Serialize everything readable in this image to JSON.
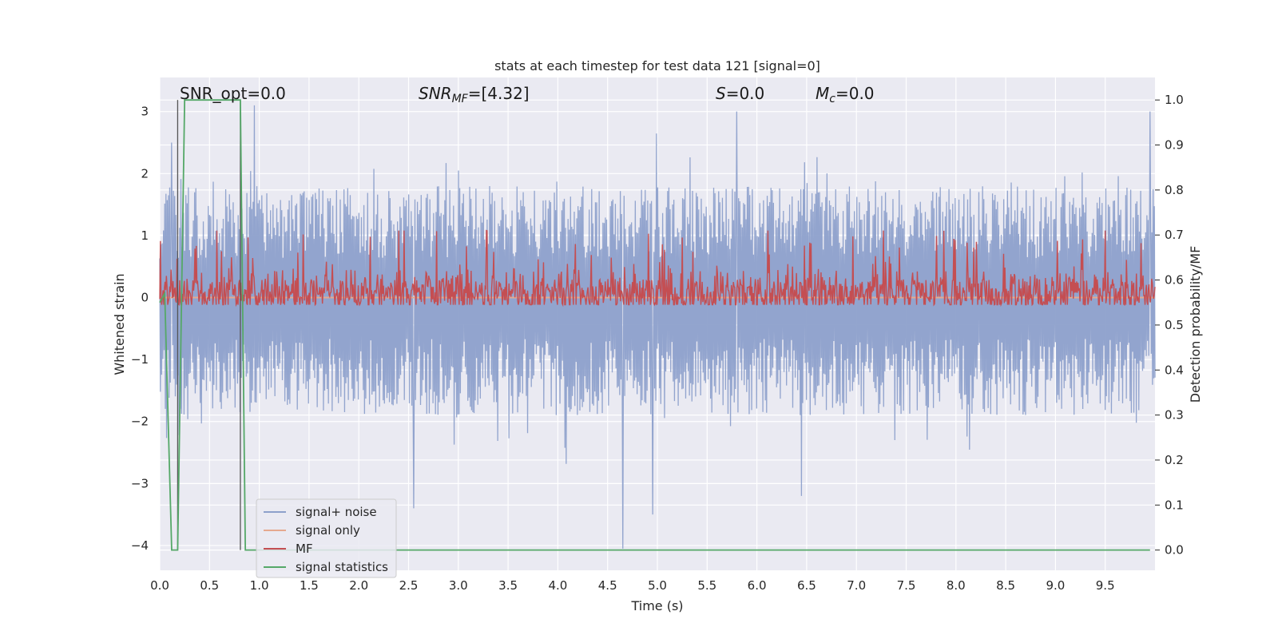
{
  "chart_data": {
    "type": "line",
    "title": "stats at each timestep for test data 121 [signal=0]",
    "xlabel": "Time (s)",
    "ylabel": "Whitened strain",
    "y2label": "Detection probability/MF",
    "xlim": [
      0.0,
      10.0
    ],
    "ylim": [
      -4.4,
      3.55
    ],
    "y2lim": [
      -0.045,
      1.05
    ],
    "x_ticks": [
      "0.0",
      "0.5",
      "1.0",
      "1.5",
      "2.0",
      "2.5",
      "3.0",
      "3.5",
      "4.0",
      "4.5",
      "5.0",
      "5.5",
      "6.0",
      "6.5",
      "7.0",
      "7.5",
      "8.0",
      "8.5",
      "9.0",
      "9.5"
    ],
    "y_ticks": [
      "3",
      "2",
      "1",
      "0",
      "−1",
      "−2",
      "−3",
      "−4"
    ],
    "y2_ticks": [
      "1.0",
      "0.9",
      "0.8",
      "0.7",
      "0.6",
      "0.5",
      "0.4",
      "0.3",
      "0.2",
      "0.1",
      "0.0"
    ],
    "grid": true,
    "legend_position": "lower-left",
    "annotations": {
      "snr_opt": "SNR_opt=0.0",
      "snr_mf_base": "SNR",
      "snr_mf_sub": "MF",
      "snr_mf_rest": "=[4.32]",
      "s_base": "S",
      "s_rest": "=0.0",
      "mc_base": "M",
      "mc_sub": "c",
      "mc_rest": "=0.0"
    },
    "vertical_markers": [
      0.18,
      0.81
    ],
    "series": [
      {
        "name": "signal+ noise",
        "color": "#8da0cb",
        "axis": "left",
        "envelope": {
          "upper_typical": 1.8,
          "lower_typical": -1.9,
          "peak_max": 3.1,
          "peak_min": -4.05
        },
        "notable_peaks": [
          [
            0.12,
            2.5
          ],
          [
            0.95,
            3.1
          ],
          [
            2.55,
            -3.4
          ],
          [
            4.65,
            -4.05
          ],
          [
            4.95,
            -3.5
          ],
          [
            5.8,
            3.0
          ],
          [
            6.45,
            -3.2
          ],
          [
            9.95,
            3.0
          ]
        ]
      },
      {
        "name": "signal only",
        "color": "#e5a98f",
        "axis": "left",
        "x": [
          0.0,
          10.0
        ],
        "y": [
          0.0,
          0.0
        ]
      },
      {
        "name": "MF",
        "color": "#c44e52",
        "axis": "right",
        "baseline": 0.57,
        "envelope": {
          "upper_typical": 0.66,
          "lower_typical": 0.545,
          "peak_max": 0.71
        }
      },
      {
        "name": "signal statistics",
        "color": "#55a868",
        "axis": "right",
        "x": [
          0.0,
          0.05,
          0.12,
          0.18,
          0.25,
          0.81,
          0.86,
          9.95
        ],
        "y": [
          0.55,
          0.57,
          0.0,
          0.0,
          1.0,
          1.0,
          0.0,
          0.0
        ]
      }
    ]
  }
}
